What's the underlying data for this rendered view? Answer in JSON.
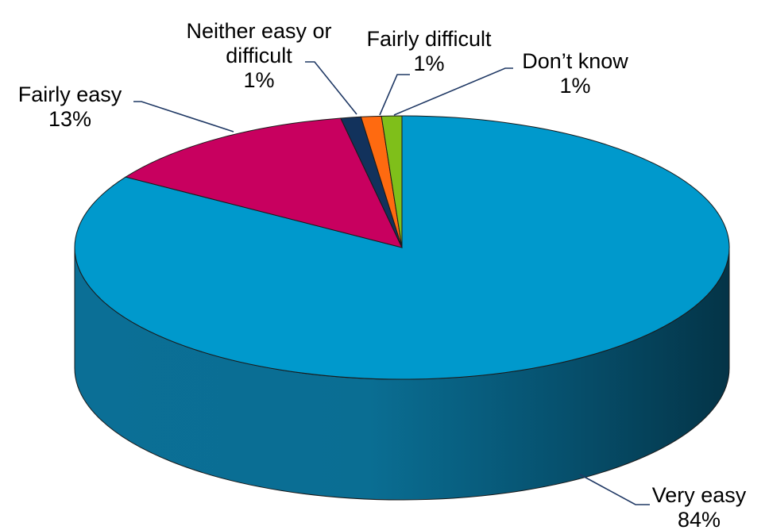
{
  "chart_data": {
    "type": "pie",
    "style": "3d",
    "slices": [
      {
        "name": "Very easy",
        "value": 84,
        "label": "84%",
        "color": "#0099CC",
        "side_color": "#0A6F94"
      },
      {
        "name": "Fairly easy",
        "value": 13,
        "label": "13%",
        "color": "#C8005F",
        "side_color": "#8E0044"
      },
      {
        "name": "Neither easy or difficult",
        "value": 1,
        "label": "1%",
        "color": "#12325C",
        "side_color": "#0B2140"
      },
      {
        "name": "Fairly difficult",
        "value": 1,
        "label": "1%",
        "color": "#FF6A10",
        "side_color": "#B84A08"
      },
      {
        "name": "Don’t know",
        "value": 1,
        "label": "1%",
        "color": "#7FBF1A",
        "side_color": "#5A8A10"
      }
    ]
  }
}
